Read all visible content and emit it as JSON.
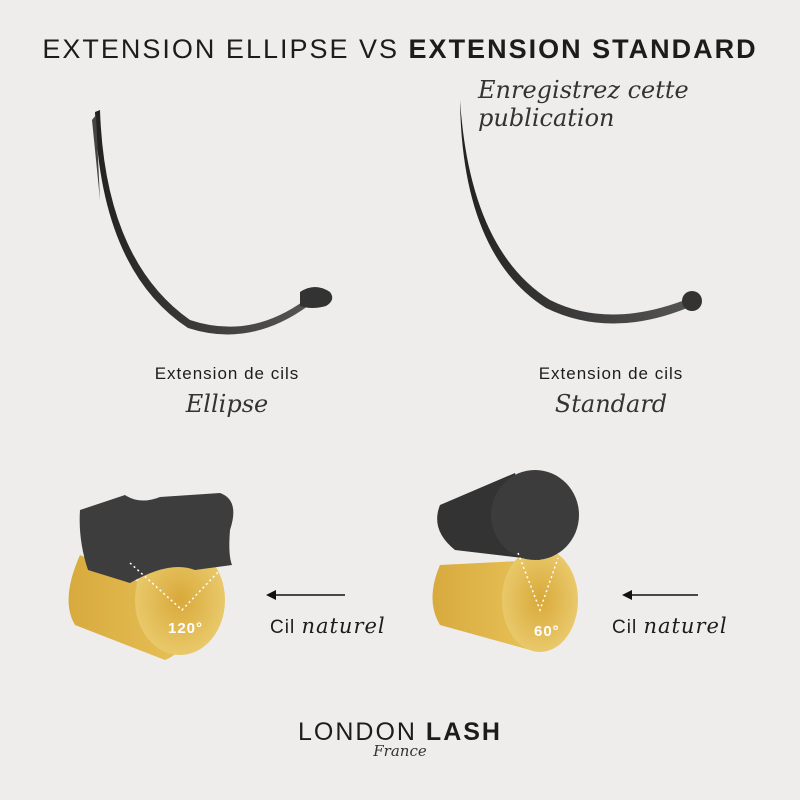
{
  "title": {
    "light": "EXTENSION ELLIPSE VS",
    "bold": "EXTENSION STANDARD"
  },
  "subtitle": "Enregistrez cette publication",
  "left": {
    "caption": "Extension de cils",
    "type": "Ellipse",
    "angle": "120°",
    "natural_label": "Cil",
    "natural_script": "naturel"
  },
  "right": {
    "caption": "Extension de cils",
    "type": "Standard",
    "angle": "60°",
    "natural_label": "Cil",
    "natural_script": "naturel"
  },
  "logo": {
    "light": "LONDON",
    "bold": "LASH",
    "sub": "France"
  },
  "colors": {
    "background": "#eeedeb",
    "lash": "#3a3a3a",
    "natural": "#e2b84a"
  }
}
